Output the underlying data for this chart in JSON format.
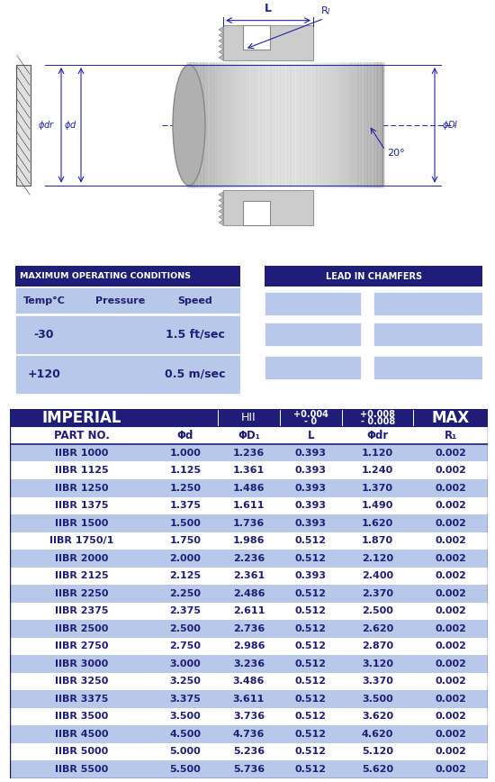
{
  "bg_color": "#ffffff",
  "dark_blue": "#1e1e78",
  "light_blue": "#b8c8e8",
  "header_text": "#ffffff",
  "body_text": "#1e1e78",
  "operating_conditions": {
    "title": "MAXIMUM OPERATING CONDITIONS",
    "col_headers": [
      "Temp°C",
      "Pressure",
      "Speed"
    ],
    "rows": [
      [
        "-30",
        "",
        "1.5 ft/sec"
      ],
      [
        "+120",
        "",
        "0.5 m/sec"
      ]
    ]
  },
  "lead_in_chamfers": {
    "title": "LEAD IN CHAMFERS"
  },
  "imperial_table": {
    "header1": [
      "IMPERIAL",
      "",
      "HII",
      "+0.004\n- 0",
      "+0.008\n- 0.008",
      "MAX"
    ],
    "header2": [
      "PART NO.",
      "Φd",
      "ΦD₁",
      "L",
      "Φdr",
      "R₁"
    ],
    "rows": [
      [
        "IIBR 1000",
        "1.000",
        "1.236",
        "0.393",
        "1.120",
        "0.002"
      ],
      [
        "IIBR 1125",
        "1.125",
        "1.361",
        "0.393",
        "1.240",
        "0.002"
      ],
      [
        "IIBR 1250",
        "1.250",
        "1.486",
        "0.393",
        "1.370",
        "0.002"
      ],
      [
        "IIBR 1375",
        "1.375",
        "1.611",
        "0.393",
        "1.490",
        "0.002"
      ],
      [
        "IIBR 1500",
        "1.500",
        "1.736",
        "0.393",
        "1.620",
        "0.002"
      ],
      [
        "IIBR 1750/1",
        "1.750",
        "1.986",
        "0.512",
        "1.870",
        "0.002"
      ],
      [
        "IIBR 2000",
        "2.000",
        "2.236",
        "0.512",
        "2.120",
        "0.002"
      ],
      [
        "IIBR 2125",
        "2.125",
        "2.361",
        "0.393",
        "2.400",
        "0.002"
      ],
      [
        "IIBR 2250",
        "2.250",
        "2.486",
        "0.512",
        "2.370",
        "0.002"
      ],
      [
        "IIBR 2375",
        "2.375",
        "2.611",
        "0.512",
        "2.500",
        "0.002"
      ],
      [
        "IIBR 2500",
        "2.500",
        "2.736",
        "0.512",
        "2.620",
        "0.002"
      ],
      [
        "IIBR 2750",
        "2.750",
        "2.986",
        "0.512",
        "2.870",
        "0.002"
      ],
      [
        "IIBR 3000",
        "3.000",
        "3.236",
        "0.512",
        "3.120",
        "0.002"
      ],
      [
        "IIBR 3250",
        "3.250",
        "3.486",
        "0.512",
        "3.370",
        "0.002"
      ],
      [
        "IIBR 3375",
        "3.375",
        "3.611",
        "0.512",
        "3.500",
        "0.002"
      ],
      [
        "IIBR 3500",
        "3.500",
        "3.736",
        "0.512",
        "3.620",
        "0.002"
      ],
      [
        "IIBR 4500",
        "4.500",
        "4.736",
        "0.512",
        "4.620",
        "0.002"
      ],
      [
        "IIBR 5000",
        "5.000",
        "5.236",
        "0.512",
        "5.120",
        "0.002"
      ],
      [
        "IIBR 5500",
        "5.500",
        "5.736",
        "0.512",
        "5.620",
        "0.002"
      ]
    ]
  }
}
